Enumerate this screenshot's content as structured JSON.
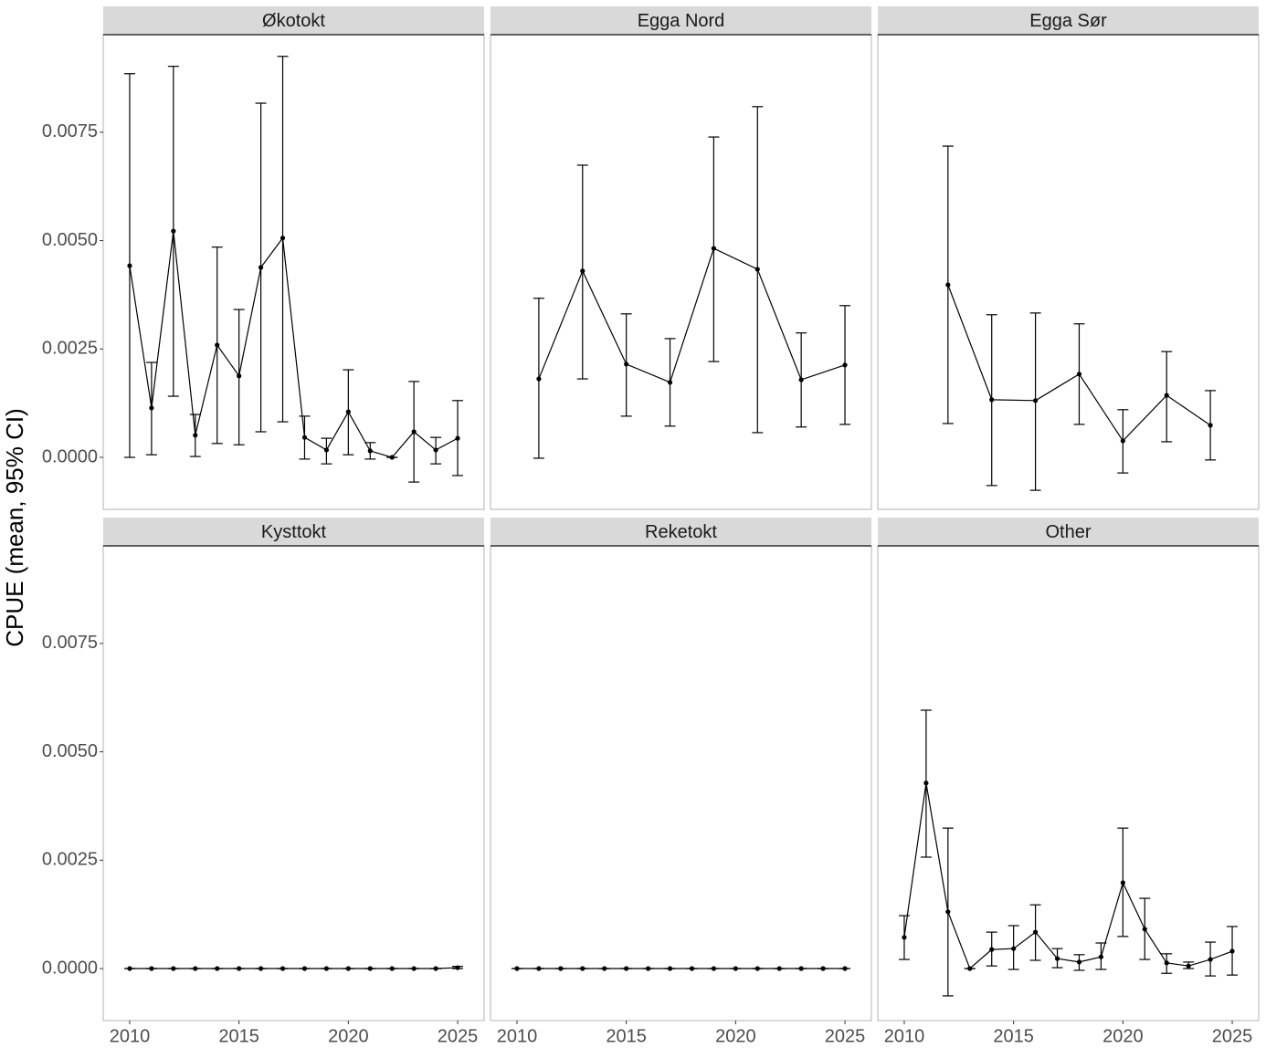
{
  "chart_data": {
    "type": "errorbar",
    "ylabel": "CPUE (mean, 95% CI)",
    "ylim": [
      -0.0012,
      0.00975
    ],
    "yticks": [
      {
        "value": 0,
        "label": "0.0000"
      },
      {
        "value": 0.0025,
        "label": "0.0025"
      },
      {
        "value": 0.005,
        "label": "0.0050"
      },
      {
        "value": 0.0075,
        "label": "0.0075"
      }
    ],
    "xlim": [
      2008.79,
      2026.21
    ],
    "xticks": [
      2010,
      2015,
      2020,
      2025
    ],
    "color": "#000000",
    "panels": [
      {
        "title": "Økotokt",
        "x": [
          2010,
          2011,
          2012,
          2013,
          2014,
          2015,
          2016,
          2017,
          2018,
          2019,
          2020,
          2021,
          2022,
          2023,
          2024,
          2025
        ],
        "values": [
          0.00442,
          0.00114,
          0.00522,
          0.00051,
          0.00259,
          0.00188,
          0.00438,
          0.00506,
          0.00046,
          0.00017,
          0.00105,
          0.00015,
          0,
          0.00059,
          0.00017,
          0.00044
        ],
        "lower": [
          0,
          6e-05,
          0.00141,
          2e-05,
          0.00032,
          0.00029,
          0.00059,
          0.00082,
          -4e-05,
          -0.00015,
          6e-05,
          -4e-05,
          0,
          -0.00057,
          -0.00015,
          -0.00042
        ],
        "upper": [
          0.00885,
          0.00219,
          0.00902,
          0.00099,
          0.00485,
          0.00341,
          0.00817,
          0.00925,
          0.00095,
          0.00044,
          0.00202,
          0.00034,
          0,
          0.00175,
          0.00046,
          0.00131
        ]
      },
      {
        "title": "Egga Nord",
        "x": [
          2011,
          2013,
          2015,
          2017,
          2019,
          2021,
          2023,
          2025
        ],
        "values": [
          0.00181,
          0.0043,
          0.00215,
          0.00173,
          0.00482,
          0.00434,
          0.00179,
          0.00213
        ],
        "lower": [
          -2e-05,
          0.00181,
          0.00095,
          0.00072,
          0.00221,
          0.00057,
          0.0007,
          0.00076
        ],
        "upper": [
          0.00367,
          0.00674,
          0.00331,
          0.00274,
          0.00739,
          0.00809,
          0.00287,
          0.0035
        ]
      },
      {
        "title": "Egga Sør",
        "x": [
          2012,
          2014,
          2016,
          2018,
          2020,
          2022,
          2024
        ],
        "values": [
          0.00398,
          0.00133,
          0.00131,
          0.00192,
          0.00038,
          0.00143,
          0.00074
        ],
        "lower": [
          0.00078,
          -0.00065,
          -0.00076,
          0.00076,
          -0.00036,
          0.00036,
          -6e-05
        ],
        "upper": [
          0.00718,
          0.00329,
          0.00333,
          0.00308,
          0.0011,
          0.00244,
          0.00154
        ]
      },
      {
        "title": "Kysttokt",
        "x": [
          2010,
          2011,
          2012,
          2013,
          2014,
          2015,
          2016,
          2017,
          2018,
          2019,
          2020,
          2021,
          2022,
          2023,
          2024,
          2025
        ],
        "values": [
          0,
          0,
          0,
          0,
          0,
          0,
          0,
          0,
          0,
          0,
          0,
          0,
          0,
          0,
          0,
          2e-05
        ],
        "lower": [
          0,
          0,
          0,
          0,
          0,
          0,
          0,
          0,
          0,
          0,
          0,
          0,
          0,
          0,
          0,
          0
        ],
        "upper": [
          0,
          0,
          0,
          0,
          0,
          0,
          0,
          0,
          0,
          0,
          0,
          0,
          0,
          0,
          0,
          5e-05
        ]
      },
      {
        "title": "Reketokt",
        "x": [
          2010,
          2011,
          2012,
          2013,
          2014,
          2015,
          2016,
          2017,
          2018,
          2019,
          2020,
          2021,
          2022,
          2023,
          2024,
          2025
        ],
        "values": [
          0,
          0,
          0,
          0,
          0,
          0,
          0,
          0,
          0,
          0,
          0,
          0,
          0,
          0,
          0,
          0
        ],
        "lower": [
          0,
          0,
          0,
          0,
          0,
          0,
          0,
          0,
          0,
          0,
          0,
          0,
          0,
          0,
          0,
          0
        ],
        "upper": [
          0,
          0,
          0,
          0,
          0,
          0,
          0,
          0,
          0,
          0,
          0,
          0,
          0,
          0,
          0,
          0
        ]
      },
      {
        "title": "Other",
        "x": [
          2010,
          2011,
          2012,
          2013,
          2014,
          2015,
          2016,
          2017,
          2018,
          2019,
          2020,
          2021,
          2022,
          2023,
          2024,
          2025
        ],
        "values": [
          0.00072,
          0.00428,
          0.00131,
          0,
          0.00044,
          0.00046,
          0.00084,
          0.00023,
          0.00015,
          0.00027,
          0.00198,
          0.00091,
          0.00013,
          6e-05,
          0.00021,
          0.0004
        ],
        "lower": [
          0.00021,
          0.00257,
          -0.00063,
          0,
          6e-05,
          -2e-05,
          0.00019,
          2e-05,
          -4e-05,
          -2e-05,
          0.00074,
          0.00021,
          -0.00011,
          0,
          -0.00017,
          -0.00015
        ],
        "upper": [
          0.00122,
          0.00596,
          0.00324,
          0,
          0.00084,
          0.00099,
          0.00147,
          0.00046,
          0.00032,
          0.00059,
          0.00324,
          0.00162,
          0.00034,
          0.00015,
          0.00061,
          0.00097
        ]
      }
    ]
  }
}
